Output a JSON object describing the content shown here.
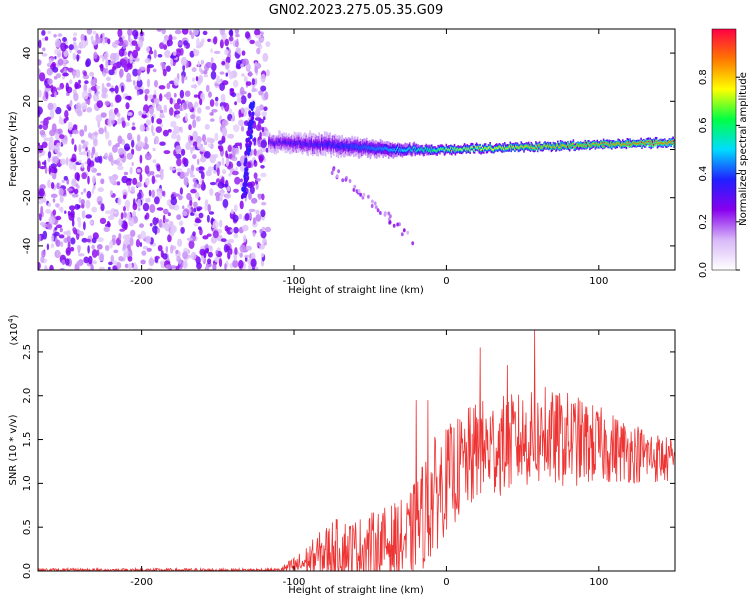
{
  "figure": {
    "title": "GN02.2023.275.05.35.G09"
  },
  "chart_data": [
    {
      "type": "heatmap",
      "xlabel": "Height of straight line (km)",
      "ylabel": "Frequency (Hz)",
      "xlim": [
        -268,
        150
      ],
      "ylim": [
        -50,
        50
      ],
      "x_ticks": [
        -200,
        -100,
        0,
        100
      ],
      "y_ticks": [
        -40,
        -20,
        0,
        20,
        40
      ],
      "colorbar": {
        "label": "Normalized spectral amplitude",
        "range": [
          0,
          1
        ],
        "ticks": [
          0.0,
          0.2,
          0.4,
          0.6,
          0.8
        ],
        "colormap": [
          "#ffffff",
          "#d8b8f8",
          "#8800ee",
          "#2020ff",
          "#00ddff",
          "#00ff44",
          "#ffff00",
          "#ff7700",
          "#ff0044"
        ]
      },
      "features": {
        "noise_region_x": [
          -268,
          -117
        ],
        "signal_band": [
          {
            "x": -117,
            "f_center": 3,
            "f_width": 7,
            "amplitude": 0.3
          },
          {
            "x": -80,
            "f_center": 2,
            "f_width": 8,
            "amplitude": 0.35
          },
          {
            "x": -40,
            "f_center": 0,
            "f_width": 6,
            "amplitude": 0.45
          },
          {
            "x": -20,
            "f_center": 0,
            "f_width": 4,
            "amplitude": 0.55
          },
          {
            "x": 0,
            "f_center": 0,
            "f_width": 3,
            "amplitude": 0.7
          },
          {
            "x": 50,
            "f_center": 1,
            "f_width": 3,
            "amplitude": 0.8
          },
          {
            "x": 100,
            "f_center": 2,
            "f_width": 3,
            "amplitude": 0.85
          },
          {
            "x": 150,
            "f_center": 3,
            "f_width": 3,
            "amplitude": 0.9
          }
        ]
      }
    },
    {
      "type": "line",
      "xlabel": "Height of straight line (km)",
      "ylabel": "SNR (10 * v/v)",
      "y_scale_note": "(x10",
      "y_scale_exp": "4",
      "y_scale_close": ")",
      "xlim": [
        -268,
        150
      ],
      "ylim": [
        0,
        2.75
      ],
      "x_ticks": [
        -200,
        -100,
        0,
        100
      ],
      "y_ticks": [
        0.0,
        0.5,
        1.0,
        1.5,
        2.0,
        2.5
      ],
      "series": [
        {
          "color": "#ee3333",
          "envelope": [
            {
              "x": -268,
              "mean": 0.01,
              "amp": 0.02
            },
            {
              "x": -110,
              "mean": 0.01,
              "amp": 0.02
            },
            {
              "x": -95,
              "mean": 0.08,
              "amp": 0.15
            },
            {
              "x": -75,
              "mean": 0.25,
              "amp": 0.35
            },
            {
              "x": -60,
              "mean": 0.25,
              "amp": 0.35
            },
            {
              "x": -45,
              "mean": 0.3,
              "amp": 0.4
            },
            {
              "x": -25,
              "mean": 0.35,
              "amp": 0.5
            },
            {
              "x": -10,
              "mean": 0.8,
              "amp": 0.7
            },
            {
              "x": 0,
              "mean": 1.05,
              "amp": 0.6
            },
            {
              "x": 20,
              "mean": 1.35,
              "amp": 0.6
            },
            {
              "x": 50,
              "mean": 1.5,
              "amp": 0.55
            },
            {
              "x": 80,
              "mean": 1.5,
              "amp": 0.55
            },
            {
              "x": 110,
              "mean": 1.4,
              "amp": 0.4
            },
            {
              "x": 150,
              "mean": 1.25,
              "amp": 0.25
            }
          ],
          "peaks": [
            {
              "x": -20,
              "y": 1.95
            },
            {
              "x": -12,
              "y": 1.95
            },
            {
              "x": 22,
              "y": 2.55
            },
            {
              "x": 40,
              "y": 2.35
            },
            {
              "x": 58,
              "y": 2.75
            },
            {
              "x": 65,
              "y": 2.1
            }
          ]
        }
      ]
    }
  ]
}
